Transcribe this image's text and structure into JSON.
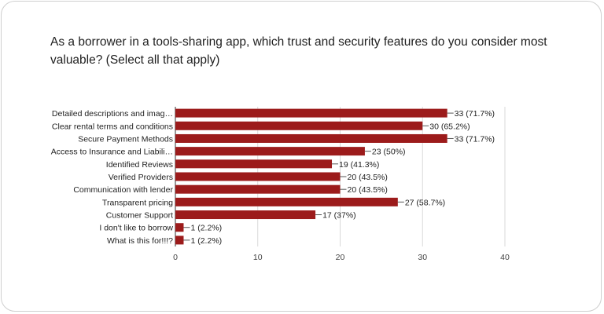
{
  "question": "As a borrower in a tools-sharing app, which trust and security features do you consider most valuable? (Select all that apply)",
  "chart_data": {
    "type": "bar",
    "orientation": "horizontal",
    "categories": [
      "Detailed descriptions and imag…",
      "Clear rental terms and conditions",
      "Secure Payment Methods",
      "Access to Insurance and Liabili…",
      "Identified Reviews",
      "Verified Providers",
      "Communication with lender",
      "Transparent pricing",
      "Customer Support",
      "I don't like to borrow",
      "What is this for!!!?"
    ],
    "values": [
      33,
      30,
      33,
      23,
      19,
      20,
      20,
      27,
      17,
      1,
      1
    ],
    "data_labels": [
      "33 (71.7%)",
      "30 (65.2%)",
      "33 (71.7%)",
      "23 (50%)",
      "19 (41.3%)",
      "20 (43.5%)",
      "20 (43.5%)",
      "27 (58.7%)",
      "17 (37%)",
      "1 (2.2%)",
      "1 (2.2%)"
    ],
    "xlim": [
      0,
      40
    ],
    "ticks": [
      0,
      10,
      20,
      30,
      40
    ],
    "grid": true,
    "bar_color": "#9c1b1b"
  }
}
